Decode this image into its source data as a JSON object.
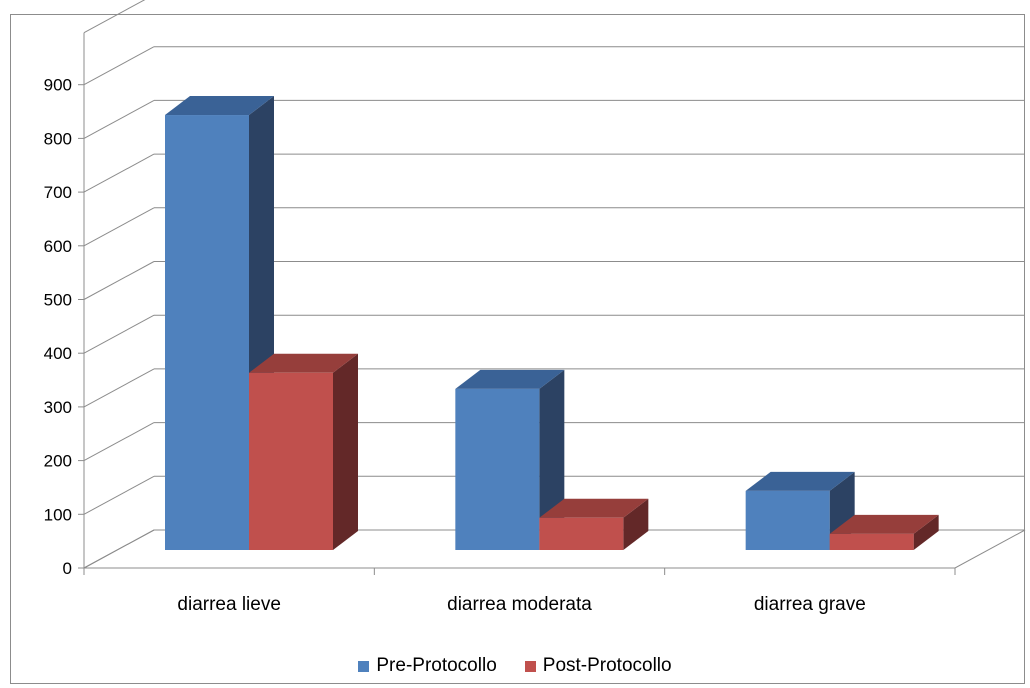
{
  "chart_data": {
    "type": "bar",
    "style": "3d-clustered-column",
    "categories": [
      "diarrea lieve",
      "diarrea moderata",
      "diarrea grave"
    ],
    "series": [
      {
        "name": "Pre-Protocollo",
        "values": [
          810,
          300,
          110
        ],
        "color": "#4f81bd",
        "side_color": "#2c4263",
        "top_color": "#3a6296"
      },
      {
        "name": "Post-Protocollo",
        "values": [
          330,
          60,
          30
        ],
        "color": "#c0504d",
        "side_color": "#632828",
        "top_color": "#963e3b"
      }
    ],
    "y_ticks": [
      "0",
      "100",
      "200",
      "300",
      "400",
      "500",
      "600",
      "700",
      "800",
      "900"
    ],
    "ylim": [
      0,
      900
    ],
    "grid": true,
    "legend_position": "bottom"
  }
}
